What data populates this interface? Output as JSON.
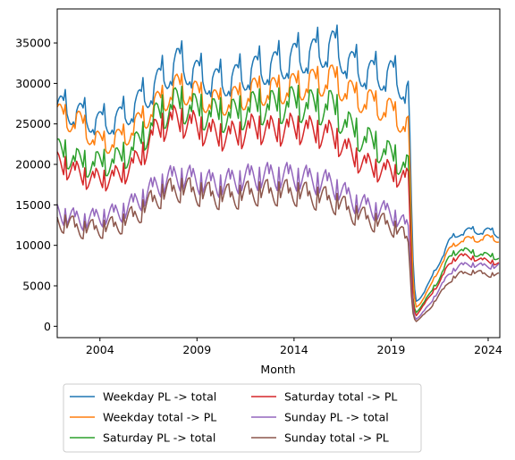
{
  "chart_data": {
    "type": "line",
    "title": "",
    "xlabel": "Month",
    "ylabel": "",
    "xlim": [
      2001.8,
      2024.6
    ],
    "ylim": [
      -1400,
      39200
    ],
    "x_ticks": [
      2004,
      2009,
      2014,
      2019,
      2024
    ],
    "y_ticks": [
      0,
      5000,
      10000,
      15000,
      20000,
      25000,
      30000,
      35000
    ],
    "grid": false,
    "legend_position": "bottom-center (below plot, 2 columns)",
    "colors": [
      "#1f77b4",
      "#ff7f0e",
      "#2ca02c",
      "#d62728",
      "#9467bd",
      "#8c564b"
    ],
    "keypoints_x": [
      2001.8,
      2002.5,
      2003.0,
      2004.0,
      2005.0,
      2006.0,
      2007.0,
      2008.0,
      2009.0,
      2010.0,
      2011.0,
      2012.0,
      2013.0,
      2014.0,
      2015.0,
      2016.0,
      2017.0,
      2018.0,
      2019.0,
      2019.9,
      2020.1,
      2020.25,
      2020.5,
      2021.0,
      2021.5,
      2022.0,
      2022.5,
      2023.0,
      2023.5,
      2024.0,
      2024.6
    ],
    "series": [
      {
        "name": "Weekday PL -> total",
        "amp": 0.06,
        "spike": 0.08,
        "values": [
          27000,
          26500,
          26000,
          25000,
          25500,
          27500,
          30000,
          32500,
          31000,
          30000,
          30500,
          31500,
          32000,
          33000,
          33500,
          34500,
          32000,
          31000,
          31000,
          29000,
          9500,
          3000,
          3500,
          5500,
          8000,
          10500,
          11500,
          11800,
          11700,
          11800,
          11200
        ]
      },
      {
        "name": "Weekday total -> PL",
        "amp": 0.06,
        "spike": 0.08,
        "values": [
          26000,
          25500,
          25000,
          22500,
          23000,
          25000,
          27500,
          29500,
          28500,
          27500,
          28000,
          29000,
          29000,
          29500,
          30000,
          30500,
          28500,
          27500,
          26500,
          24500,
          7000,
          2300,
          2800,
          4800,
          7300,
          9500,
          10500,
          10800,
          10700,
          11000,
          10600
        ]
      },
      {
        "name": "Saturday PL -> total",
        "amp": 0.08,
        "spike": 0.14,
        "values": [
          21500,
          21000,
          20000,
          20000,
          20500,
          22500,
          26000,
          27500,
          26500,
          26000,
          26000,
          27000,
          27000,
          27500,
          27000,
          27000,
          24000,
          22500,
          21000,
          19500,
          4000,
          1600,
          2300,
          4000,
          6000,
          8500,
          9500,
          9200,
          8900,
          8700,
          8500
        ]
      },
      {
        "name": "Saturday total -> PL",
        "amp": 0.08,
        "spike": 0.14,
        "values": [
          20000,
          19500,
          18500,
          18000,
          18500,
          20500,
          24500,
          25500,
          24500,
          23500,
          23500,
          24500,
          24000,
          24500,
          24000,
          23500,
          21000,
          19500,
          19000,
          18000,
          3500,
          1200,
          2000,
          3700,
          5500,
          7700,
          8800,
          8500,
          8300,
          8000,
          7800
        ]
      },
      {
        "name": "Sunday PL -> total",
        "amp": 0.1,
        "spike": 0.16,
        "values": [
          14000,
          13500,
          13000,
          13500,
          14000,
          15500,
          17500,
          18500,
          18000,
          17500,
          18000,
          18500,
          18500,
          18500,
          18000,
          17500,
          15500,
          14500,
          14000,
          12000,
          2500,
          800,
          1300,
          2800,
          4600,
          6600,
          7400,
          7700,
          7500,
          7400,
          7500
        ]
      },
      {
        "name": "Sunday total -> PL",
        "amp": 0.1,
        "spike": 0.16,
        "values": [
          13000,
          12500,
          12000,
          12000,
          12500,
          14000,
          16000,
          17000,
          16500,
          16000,
          16000,
          16500,
          16500,
          16500,
          16000,
          15500,
          14000,
          13000,
          12500,
          10500,
          2000,
          500,
          1000,
          2200,
          3900,
          5600,
          6400,
          6700,
          6600,
          6400,
          6300
        ]
      }
    ]
  }
}
